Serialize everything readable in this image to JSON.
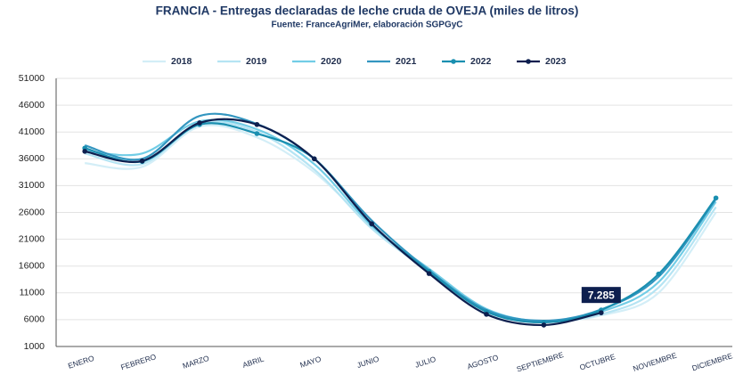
{
  "chart_data": {
    "type": "line",
    "title": "FRANCIA - Entregas declaradas de leche cruda de OVEJA (miles de litros)",
    "subtitle": "Fuente: FranceAgriMer, elaboración SGPGyC",
    "categories": [
      "ENERO",
      "FEBRERO",
      "MARZO",
      "ABRIL",
      "MAYO",
      "JUNIO",
      "JULIO",
      "AGOSTO",
      "SEPTIEMBRE",
      "OCTUBRE",
      "NOVIEMBRE",
      "DICIEMBRE"
    ],
    "ylim": [
      1000,
      51000
    ],
    "yticks": [
      1000,
      6000,
      11000,
      16000,
      21000,
      26000,
      31000,
      36000,
      41000,
      46000,
      51000
    ],
    "grid": true,
    "legend": "top",
    "series": [
      {
        "name": "2018",
        "color": "#d3eef7",
        "markers": false,
        "values": [
          35200,
          34500,
          42000,
          40000,
          33500,
          23500,
          15000,
          7300,
          5700,
          6800,
          11000,
          26000
        ]
      },
      {
        "name": "2019",
        "color": "#b5e4f3",
        "markers": false,
        "values": [
          37000,
          35000,
          42500,
          41000,
          34000,
          23000,
          15000,
          7500,
          5800,
          7000,
          12000,
          27000
        ]
      },
      {
        "name": "2020",
        "color": "#72cde6",
        "markers": false,
        "values": [
          37500,
          37000,
          43000,
          41500,
          35000,
          23500,
          15500,
          8000,
          5700,
          7500,
          13000,
          28000
        ]
      },
      {
        "name": "2021",
        "color": "#3396c0",
        "markers": false,
        "values": [
          38500,
          36000,
          44000,
          42500,
          36000,
          24500,
          15200,
          7800,
          5800,
          7900,
          14000,
          28500
        ]
      },
      {
        "name": "2022",
        "color": "#1a8fb0",
        "markers": true,
        "values": [
          38000,
          35500,
          42400,
          40700,
          36000,
          23800,
          15000,
          7500,
          5500,
          7800,
          14500,
          28700
        ]
      },
      {
        "name": "2023",
        "color": "#0d1f4f",
        "markers": true,
        "values": [
          37400,
          35600,
          42700,
          42400,
          36000,
          23900,
          14600,
          7000,
          5000,
          7285,
          null,
          null
        ],
        "value_labels": [
          null,
          null,
          null,
          null,
          null,
          null,
          null,
          null,
          null,
          "7.285",
          null,
          null
        ]
      }
    ]
  }
}
